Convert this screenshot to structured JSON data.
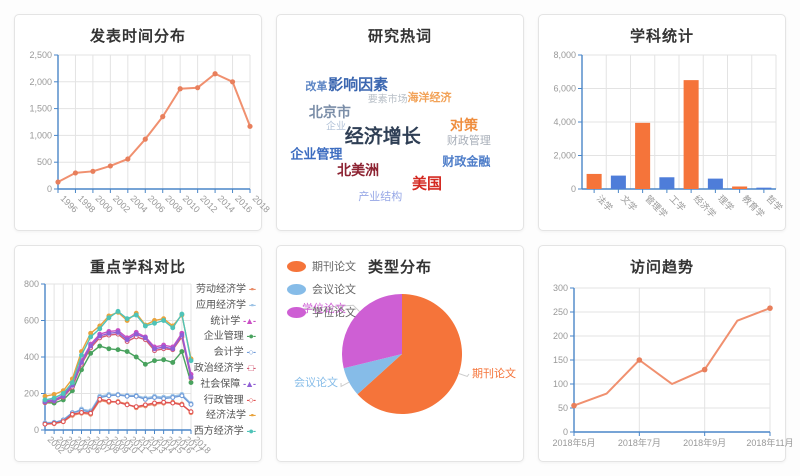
{
  "accent_axis_color": "#4a86c8",
  "grid_color": "#e3e3e3",
  "chart_data": [
    {
      "type": "line",
      "title": "发表时间分布",
      "x_ticks": [
        "1996",
        "1998",
        "2000",
        "2002",
        "2004",
        "2006",
        "2008",
        "2010",
        "2012",
        "2014",
        "2016",
        "2018"
      ],
      "values": [
        130,
        300,
        330,
        430,
        560,
        930,
        1350,
        1870,
        1890,
        2150,
        2000,
        1170
      ],
      "ylim": [
        0,
        2500
      ],
      "yticks": [
        0,
        500,
        1000,
        1500,
        2000,
        2500
      ],
      "ytick_labels": [
        "0",
        "500",
        "1,000",
        "1,500",
        "2,000",
        "2,500"
      ],
      "line_color": "#f0906f",
      "marker_color": "#e87f5c",
      "grid": true
    },
    {
      "type": "wordcloud",
      "title": "研究热词",
      "words": [
        {
          "text": "改革",
          "size": 11,
          "weight": 700,
          "color": "#5b84c4",
          "x": 16,
          "y": 33
        },
        {
          "text": "影响因素",
          "size": 15,
          "weight": 700,
          "color": "#3a66b0",
          "x": 33,
          "y": 32
        },
        {
          "text": "要素市场",
          "size": 10,
          "weight": 400,
          "color": "#b9c0c8",
          "x": 45,
          "y": 38.5
        },
        {
          "text": "海洋经济",
          "size": 11,
          "weight": 700,
          "color": "#f2a257",
          "x": 62,
          "y": 38
        },
        {
          "text": "北京市",
          "size": 14,
          "weight": 700,
          "color": "#7b8ea8",
          "x": 21.5,
          "y": 45
        },
        {
          "text": "企业",
          "size": 10,
          "weight": 400,
          "color": "#b3c3d8",
          "x": 24,
          "y": 51
        },
        {
          "text": "经济增长",
          "size": 19,
          "weight": 700,
          "color": "#2f3f55",
          "x": 43,
          "y": 56
        },
        {
          "text": "对策",
          "size": 14,
          "weight": 700,
          "color": "#ef8e3f",
          "x": 76,
          "y": 51
        },
        {
          "text": "财政管理",
          "size": 11,
          "weight": 400,
          "color": "#a7aeb8",
          "x": 78,
          "y": 58
        },
        {
          "text": "企业管理",
          "size": 13,
          "weight": 700,
          "color": "#3c6cc0",
          "x": 16,
          "y": 64
        },
        {
          "text": "财政金融",
          "size": 12,
          "weight": 700,
          "color": "#4f7ec9",
          "x": 77,
          "y": 68
        },
        {
          "text": "北美洲",
          "size": 14,
          "weight": 700,
          "color": "#8d2332",
          "x": 33,
          "y": 72
        },
        {
          "text": "美国",
          "size": 15,
          "weight": 700,
          "color": "#d42a22",
          "x": 61,
          "y": 78
        },
        {
          "text": "产业结构",
          "size": 11,
          "weight": 400,
          "color": "#96a7e6",
          "x": 42,
          "y": 84
        }
      ]
    },
    {
      "type": "bar",
      "title": "学科统计",
      "categories": [
        "法学",
        "文学",
        "管理学",
        "工学",
        "经济学",
        "理学",
        "教育学",
        "哲学"
      ],
      "values": [
        900,
        800,
        3950,
        700,
        6500,
        620,
        150,
        80
      ],
      "bar_colors": [
        "#f5743a",
        "#4e7dd9",
        "#f5743a",
        "#4e7dd9",
        "#f5743a",
        "#4e7dd9",
        "#f5743a",
        "#4e7dd9"
      ],
      "ylim": [
        0,
        8000
      ],
      "yticks": [
        0,
        2000,
        4000,
        6000,
        8000
      ],
      "ytick_labels": [
        "0",
        "2,000",
        "4,000",
        "6,000",
        "8,000"
      ]
    },
    {
      "type": "line",
      "title": "重点学科对比",
      "x_ticks": [
        "2002",
        "2003",
        "2004",
        "2005",
        "2006",
        "2007",
        "2008",
        "2009",
        "2010",
        "2011",
        "2012",
        "2013",
        "2014",
        "2015",
        "2016",
        "2017",
        "2018"
      ],
      "ylim": [
        0,
        800
      ],
      "yticks": [
        0,
        200,
        400,
        600,
        800
      ],
      "ytick_labels": [
        "0",
        "200",
        "400",
        "600",
        "800"
      ],
      "series": [
        {
          "name": "劳动经济学",
          "color": "#e98b67",
          "glyph": "▪",
          "open": false,
          "values": [
            35,
            35,
            45,
            80,
            92,
            86,
            162,
            152,
            156,
            142,
            122,
            132,
            142,
            147,
            152,
            142,
            95
          ]
        },
        {
          "name": "应用经济学",
          "color": "#9dc3e6",
          "glyph": "▪",
          "open": false,
          "values": [
            40,
            42,
            52,
            90,
            115,
            105,
            185,
            195,
            195,
            190,
            190,
            175,
            185,
            180,
            185,
            195,
            145
          ]
        },
        {
          "name": "统计学",
          "color": "#c94fc4",
          "glyph": "▲",
          "open": false,
          "values": [
            160,
            165,
            190,
            250,
            380,
            470,
            525,
            540,
            545,
            505,
            535,
            510,
            455,
            465,
            455,
            530,
            305
          ]
        },
        {
          "name": "企业管理",
          "color": "#49a25e",
          "glyph": "●",
          "open": false,
          "values": [
            150,
            148,
            165,
            215,
            330,
            420,
            460,
            445,
            440,
            430,
            400,
            360,
            380,
            385,
            370,
            430,
            260
          ]
        },
        {
          "name": "会计学",
          "color": "#6f9ad8",
          "glyph": "○",
          "open": true,
          "values": [
            35,
            40,
            55,
            95,
            108,
            98,
            178,
            188,
            192,
            185,
            185,
            168,
            178,
            172,
            178,
            188,
            140
          ]
        },
        {
          "name": "政治经济学",
          "color": "#d45c75",
          "glyph": "□",
          "open": true,
          "values": [
            150,
            158,
            180,
            235,
            360,
            450,
            505,
            520,
            525,
            485,
            510,
            495,
            435,
            445,
            440,
            510,
            285
          ]
        },
        {
          "name": "社会保障",
          "color": "#8f5fd4",
          "glyph": "▲",
          "open": false,
          "values": [
            155,
            160,
            185,
            245,
            370,
            460,
            515,
            530,
            535,
            495,
            525,
            505,
            445,
            455,
            445,
            520,
            290
          ]
        },
        {
          "name": "行政管理",
          "color": "#e05252",
          "glyph": "○",
          "open": true,
          "values": [
            32,
            36,
            46,
            86,
            96,
            92,
            168,
            158,
            152,
            138,
            128,
            138,
            148,
            152,
            148,
            138,
            100
          ]
        },
        {
          "name": "经济法学",
          "color": "#e8a33d",
          "glyph": "▪",
          "open": false,
          "values": [
            185,
            195,
            215,
            280,
            430,
            530,
            570,
            625,
            645,
            600,
            640,
            575,
            600,
            610,
            570,
            630,
            390
          ]
        },
        {
          "name": "西方经济学",
          "color": "#4fc3b8",
          "glyph": "●",
          "open": false,
          "values": [
            165,
            175,
            200,
            260,
            410,
            510,
            555,
            615,
            650,
            610,
            630,
            570,
            585,
            600,
            560,
            635,
            380
          ]
        }
      ]
    },
    {
      "type": "pie",
      "title": "类型分布",
      "slices": [
        {
          "label": "期刊论文",
          "value": 63.3,
          "color": "#f5743a",
          "edge_angle": 109,
          "label_pos": [
            194,
            99
          ],
          "anchor": "start"
        },
        {
          "label": "会议论文",
          "value": 7.9,
          "color": "#86bce8",
          "edge_angle": 242,
          "label_pos": [
            60,
            108
          ],
          "anchor": "end"
        },
        {
          "label": "学位论文",
          "value": 28.8,
          "color": "#ce5fd4",
          "edge_angle": 315,
          "label_pos": [
            24,
            34
          ],
          "anchor": "start"
        }
      ],
      "legend": [
        {
          "label": "期刊论文",
          "color": "#f5743a"
        },
        {
          "label": "会议论文",
          "color": "#86bce8"
        },
        {
          "label": "学位论文",
          "color": "#ce5fd4"
        }
      ]
    },
    {
      "type": "line",
      "title": "访问趋势",
      "x_ticks": [
        "2018年5月",
        "2018年7月",
        "2018年9月",
        "2018年11月"
      ],
      "tick_positions": [
        0,
        2,
        4,
        6
      ],
      "values": [
        55,
        80,
        150,
        100,
        130,
        232,
        258
      ],
      "ylim": [
        0,
        300
      ],
      "yticks": [
        0,
        50,
        100,
        150,
        200,
        250,
        300
      ],
      "ytick_labels": [
        "0",
        "50",
        "100",
        "150",
        "200",
        "250",
        "300"
      ],
      "line_color": "#f0906f",
      "marker_color": "#e87f5c"
    }
  ]
}
